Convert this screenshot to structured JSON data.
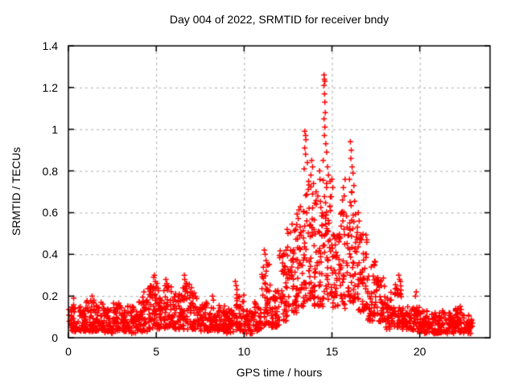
{
  "chart_data": {
    "type": "scatter",
    "title": "Day 004 of 2022, SRMTID for receiver bndy",
    "xlabel": "GPS time / hours",
    "ylabel": "SRMTID / TECUs",
    "xlim": [
      0,
      24
    ],
    "ylim": [
      0,
      1.4
    ],
    "xticks": [
      0,
      5,
      10,
      15,
      20
    ],
    "xtick_labels": [
      "0",
      "5",
      "10",
      "15",
      "20"
    ],
    "yticks": [
      0,
      0.2,
      0.4,
      0.6,
      0.8,
      1,
      1.2,
      1.4
    ],
    "ytick_labels": [
      "0",
      "0.2",
      "0.4",
      "0.6",
      "0.8",
      "1",
      "1.2",
      "1.4"
    ],
    "grid": true,
    "grid_color": "#aaaaaa",
    "frame_color": "#000000",
    "background": "#ffffff",
    "legend": "none",
    "marker": "plus",
    "marker_color": "#ff0000",
    "data_start_hour": 0,
    "data_end_hour": 23,
    "dense_bins": {
      "description": "dense scatter mass read from plot; each row = [hour_center, value_min, value_max, approx_point_count] over a 0.5 h bin",
      "bin_width": 0.5,
      "columns": [
        "t_center",
        "v_min",
        "v_max",
        "n_points"
      ],
      "rows": [
        [
          0.25,
          0.03,
          0.16,
          42
        ],
        [
          0.75,
          0.03,
          0.15,
          42
        ],
        [
          1.25,
          0.03,
          0.18,
          44
        ],
        [
          1.75,
          0.03,
          0.17,
          42
        ],
        [
          2.25,
          0.02,
          0.15,
          42
        ],
        [
          2.75,
          0.03,
          0.17,
          42
        ],
        [
          3.25,
          0.03,
          0.16,
          42
        ],
        [
          3.75,
          0.02,
          0.15,
          42
        ],
        [
          4.25,
          0.03,
          0.2,
          44
        ],
        [
          4.75,
          0.04,
          0.25,
          44
        ],
        [
          5.25,
          0.04,
          0.24,
          44
        ],
        [
          5.75,
          0.05,
          0.25,
          44
        ],
        [
          6.25,
          0.04,
          0.22,
          42
        ],
        [
          6.75,
          0.04,
          0.27,
          44
        ],
        [
          7.25,
          0.04,
          0.22,
          42
        ],
        [
          7.75,
          0.03,
          0.17,
          40
        ],
        [
          8.25,
          0.03,
          0.15,
          40
        ],
        [
          8.75,
          0.03,
          0.16,
          40
        ],
        [
          9.25,
          0.02,
          0.14,
          40
        ],
        [
          9.75,
          0.03,
          0.21,
          42
        ],
        [
          10.25,
          0.02,
          0.13,
          40
        ],
        [
          10.75,
          0.03,
          0.18,
          40
        ],
        [
          11.25,
          0.06,
          0.36,
          44
        ],
        [
          11.75,
          0.05,
          0.24,
          42
        ],
        [
          12.25,
          0.08,
          0.45,
          46
        ],
        [
          12.75,
          0.12,
          0.55,
          48
        ],
        [
          13.25,
          0.15,
          0.66,
          50
        ],
        [
          13.75,
          0.18,
          0.76,
          52
        ],
        [
          14.25,
          0.15,
          0.66,
          48
        ],
        [
          14.75,
          0.18,
          0.76,
          52
        ],
        [
          15.25,
          0.13,
          0.5,
          44
        ],
        [
          15.75,
          0.14,
          0.62,
          44
        ],
        [
          16.25,
          0.17,
          0.7,
          50
        ],
        [
          16.75,
          0.12,
          0.5,
          46
        ],
        [
          17.25,
          0.08,
          0.38,
          42
        ],
        [
          17.75,
          0.07,
          0.3,
          40
        ],
        [
          18.25,
          0.04,
          0.22,
          40
        ],
        [
          18.75,
          0.05,
          0.26,
          42
        ],
        [
          19.25,
          0.04,
          0.16,
          40
        ],
        [
          19.75,
          0.03,
          0.15,
          40
        ],
        [
          20.25,
          0.02,
          0.13,
          38
        ],
        [
          20.75,
          0.02,
          0.12,
          38
        ],
        [
          21.25,
          0.02,
          0.13,
          38
        ],
        [
          21.75,
          0.02,
          0.12,
          38
        ],
        [
          22.25,
          0.02,
          0.14,
          38
        ],
        [
          22.75,
          0.02,
          0.11,
          38
        ]
      ]
    },
    "peak_points": [
      [
        0.3,
        0.19
      ],
      [
        1.35,
        0.2
      ],
      [
        4.3,
        0.22
      ],
      [
        4.85,
        0.29
      ],
      [
        4.9,
        0.3
      ],
      [
        4.95,
        0.27
      ],
      [
        5.05,
        0.26
      ],
      [
        5.55,
        0.28
      ],
      [
        5.6,
        0.26
      ],
      [
        6.6,
        0.3
      ],
      [
        6.62,
        0.28
      ],
      [
        6.7,
        0.26
      ],
      [
        7.0,
        0.24
      ],
      [
        8.2,
        0.2
      ],
      [
        8.25,
        0.18
      ],
      [
        9.5,
        0.27
      ],
      [
        9.55,
        0.25
      ],
      [
        9.6,
        0.23
      ],
      [
        11.15,
        0.42
      ],
      [
        11.2,
        0.4
      ],
      [
        11.25,
        0.37
      ],
      [
        11.3,
        0.35
      ],
      [
        12.45,
        0.52
      ],
      [
        12.5,
        0.5
      ],
      [
        13.45,
        0.99
      ],
      [
        13.5,
        0.97
      ],
      [
        13.52,
        0.95
      ],
      [
        13.45,
        0.91
      ],
      [
        13.5,
        0.88
      ],
      [
        13.6,
        0.84
      ],
      [
        13.42,
        0.81
      ],
      [
        13.85,
        0.85
      ],
      [
        13.9,
        0.82
      ],
      [
        13.8,
        0.78
      ],
      [
        13.95,
        0.74
      ],
      [
        14.1,
        0.7
      ],
      [
        14.2,
        0.68
      ],
      [
        14.3,
        0.8
      ],
      [
        14.32,
        0.76
      ],
      [
        14.55,
        1.26
      ],
      [
        14.57,
        1.24
      ],
      [
        14.6,
        1.23
      ],
      [
        14.55,
        1.21
      ],
      [
        14.58,
        1.17
      ],
      [
        14.6,
        1.13
      ],
      [
        14.62,
        1.08
      ],
      [
        14.55,
        1.05
      ],
      [
        14.6,
        1.01
      ],
      [
        14.57,
        0.97
      ],
      [
        14.65,
        0.93
      ],
      [
        14.7,
        0.89
      ],
      [
        14.5,
        0.85
      ],
      [
        14.75,
        0.82
      ],
      [
        14.8,
        0.78
      ],
      [
        15.0,
        0.76
      ],
      [
        15.05,
        0.72
      ],
      [
        15.6,
        0.66
      ],
      [
        15.65,
        0.72
      ],
      [
        15.7,
        0.68
      ],
      [
        15.75,
        0.76
      ],
      [
        16.05,
        0.94
      ],
      [
        16.1,
        0.9
      ],
      [
        16.08,
        0.86
      ],
      [
        16.15,
        0.82
      ],
      [
        16.2,
        0.79
      ],
      [
        16.0,
        0.76
      ],
      [
        16.25,
        0.73
      ],
      [
        16.12,
        0.7
      ],
      [
        16.5,
        0.6
      ],
      [
        16.55,
        0.56
      ],
      [
        16.45,
        0.53
      ],
      [
        18.8,
        0.3
      ],
      [
        18.85,
        0.28
      ],
      [
        18.9,
        0.27
      ],
      [
        19.75,
        0.2
      ],
      [
        19.8,
        0.22
      ],
      [
        22.05,
        0.14
      ],
      [
        22.3,
        0.15
      ]
    ]
  }
}
